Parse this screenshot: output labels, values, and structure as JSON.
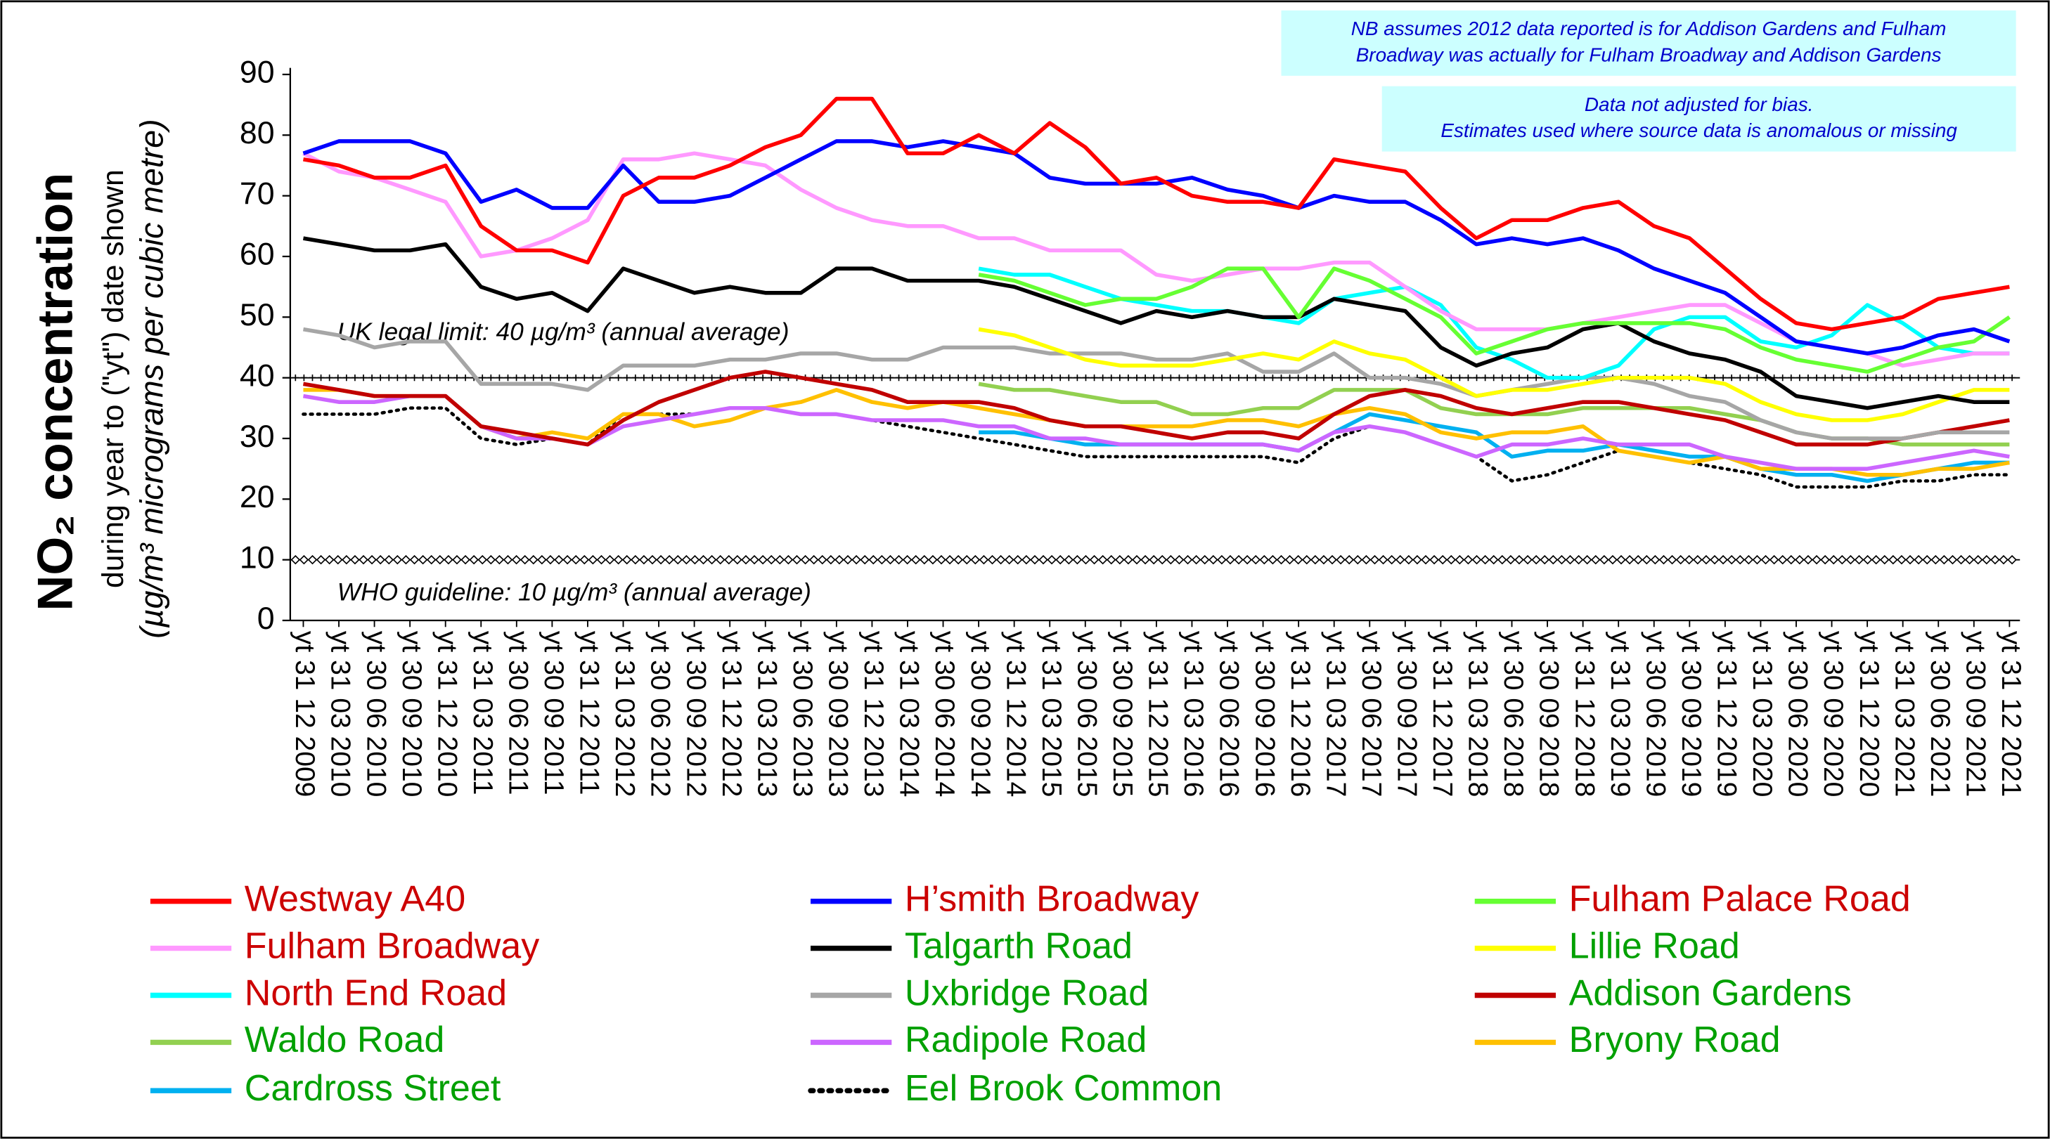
{
  "chart_data": {
    "type": "line",
    "y_title": "NO₂ concentration",
    "y_subtitle": "during year to (\"yt\") date shown",
    "y_units": "(µg/m³ micrograms per cubic metre)",
    "notes": [
      {
        "lines": [
          "NB assumes 2012 data reported is for Addison Gardens and Fulham",
          "Broadway was actually for Fulham Broadway and Addison Gardens"
        ]
      },
      {
        "lines": [
          "Data not adjusted for bias.",
          "Estimates used where source data is anomalous or missing"
        ]
      }
    ],
    "reference_lines": [
      {
        "value": 40,
        "label": "UK legal limit: 40 µg/m³ (annual average)",
        "marker": "plus"
      },
      {
        "value": 10,
        "label": "WHO guideline: 10 µg/m³ (annual average)",
        "marker": "diamond"
      }
    ],
    "ylim": [
      0,
      90
    ],
    "yticks": [
      0,
      10,
      20,
      30,
      40,
      50,
      60,
      70,
      80,
      90
    ],
    "categories": [
      "yt 31 12 2009",
      "yt 31 03 2010",
      "yt 30 06 2010",
      "yt 30 09 2010",
      "yt 31 12 2010",
      "yt 31 03 2011",
      "yt 30 06 2011",
      "yt 30 09 2011",
      "yt 31 12 2011",
      "yt 31 03 2012",
      "yt 30 06 2012",
      "yt 30 09 2012",
      "yt 31 12 2012",
      "yt 31 03 2013",
      "yt 30 06 2013",
      "yt 30 09 2013",
      "yt 31 12 2013",
      "yt 31 03 2014",
      "yt 30 06 2014",
      "yt 30 09 2014",
      "yt 31 12 2014",
      "yt 31 03 2015",
      "yt 30 06 2015",
      "yt 30 09 2015",
      "yt 31 12 2015",
      "yt 31 03 2016",
      "yt 30 06 2016",
      "yt 30 09 2016",
      "yt 31 12 2016",
      "yt 31 03 2017",
      "yt 30 06 2017",
      "yt 30 09 2017",
      "yt 31 12 2017",
      "yt 31 03 2018",
      "yt 30 06 2018",
      "yt 30 09 2018",
      "yt 31 12 2018",
      "yt 31 03 2019",
      "yt 30 06 2019",
      "yt 30 09 2019",
      "yt 31 12 2019",
      "yt 31 03 2020",
      "yt 30 06 2020",
      "yt 30 09 2020",
      "yt 31 12 2020",
      "yt 31 03 2021",
      "yt 30 06 2021",
      "yt 30 09 2021",
      "yt 31 12 2021"
    ],
    "series": [
      {
        "name": "Westway A40",
        "color": "#ff0000",
        "label_color": "#cc0000",
        "style": "solid",
        "values": [
          76,
          75,
          73,
          73,
          75,
          65,
          61,
          61,
          59,
          70,
          73,
          73,
          75,
          78,
          80,
          86,
          86,
          77,
          77,
          80,
          77,
          82,
          78,
          72,
          73,
          70,
          69,
          69,
          68,
          76,
          75,
          74,
          68,
          63,
          66,
          66,
          68,
          69,
          65,
          63,
          58,
          53,
          49,
          48,
          49,
          50,
          53,
          54,
          55
        ]
      },
      {
        "name": "H’smith Broadway",
        "color": "#0000ff",
        "label_color": "#cc0000",
        "style": "solid",
        "values": [
          77,
          79,
          79,
          79,
          77,
          69,
          71,
          68,
          68,
          75,
          69,
          69,
          70,
          73,
          76,
          79,
          79,
          78,
          79,
          78,
          77,
          73,
          72,
          72,
          72,
          73,
          71,
          70,
          68,
          70,
          69,
          69,
          66,
          62,
          63,
          62,
          63,
          61,
          58,
          56,
          54,
          50,
          46,
          45,
          44,
          45,
          47,
          48,
          46
        ]
      },
      {
        "name": "Fulham Palace Road",
        "color": "#66ff33",
        "label_color": "#cc0000",
        "style": "solid",
        "values": [
          null,
          null,
          null,
          null,
          null,
          null,
          null,
          null,
          null,
          null,
          null,
          null,
          null,
          null,
          null,
          null,
          null,
          null,
          null,
          57,
          56,
          54,
          52,
          53,
          53,
          55,
          58,
          58,
          50,
          58,
          56,
          53,
          50,
          44,
          46,
          48,
          49,
          49,
          49,
          49,
          48,
          45,
          43,
          42,
          41,
          43,
          45,
          46,
          50
        ]
      },
      {
        "name": "Fulham Broadway",
        "color": "#ff99ff",
        "label_color": "#cc0000",
        "style": "solid",
        "values": [
          77,
          74,
          73,
          71,
          69,
          60,
          61,
          63,
          66,
          76,
          76,
          77,
          76,
          75,
          71,
          68,
          66,
          65,
          65,
          63,
          63,
          61,
          61,
          61,
          57,
          56,
          57,
          58,
          58,
          59,
          59,
          55,
          51,
          48,
          48,
          48,
          49,
          50,
          51,
          52,
          52,
          49,
          46,
          45,
          44,
          42,
          43,
          44,
          44
        ]
      },
      {
        "name": "Talgarth Road",
        "color": "#000000",
        "label_color": "#00a000",
        "style": "solid",
        "values": [
          63,
          62,
          61,
          61,
          62,
          55,
          53,
          54,
          51,
          58,
          56,
          54,
          55,
          54,
          54,
          58,
          58,
          56,
          56,
          56,
          55,
          53,
          51,
          49,
          51,
          50,
          51,
          50,
          50,
          53,
          52,
          51,
          45,
          42,
          44,
          45,
          48,
          49,
          46,
          44,
          43,
          41,
          37,
          36,
          35,
          36,
          37,
          36,
          36
        ]
      },
      {
        "name": "Lillie Road",
        "color": "#ffff00",
        "label_color": "#00a000",
        "style": "solid",
        "values": [
          null,
          null,
          null,
          null,
          null,
          null,
          null,
          null,
          null,
          null,
          null,
          null,
          null,
          null,
          null,
          null,
          null,
          null,
          null,
          48,
          47,
          45,
          43,
          42,
          42,
          42,
          43,
          44,
          43,
          46,
          44,
          43,
          40,
          37,
          38,
          38,
          39,
          40,
          40,
          40,
          39,
          36,
          34,
          33,
          33,
          34,
          36,
          38,
          38
        ]
      },
      {
        "name": "North End Road",
        "color": "#00ffff",
        "label_color": "#cc0000",
        "style": "solid",
        "values": [
          null,
          null,
          null,
          null,
          null,
          null,
          null,
          null,
          null,
          null,
          null,
          null,
          null,
          null,
          null,
          null,
          null,
          null,
          null,
          58,
          57,
          57,
          55,
          53,
          52,
          51,
          51,
          50,
          49,
          53,
          54,
          55,
          52,
          45,
          43,
          40,
          40,
          42,
          48,
          50,
          50,
          46,
          45,
          47,
          52,
          49,
          45,
          44,
          44
        ]
      },
      {
        "name": "Uxbridge Road",
        "color": "#a6a6a6",
        "label_color": "#00a000",
        "style": "solid",
        "values": [
          48,
          47,
          45,
          46,
          46,
          39,
          39,
          39,
          38,
          42,
          42,
          42,
          43,
          43,
          44,
          44,
          43,
          43,
          45,
          45,
          45,
          44,
          44,
          44,
          43,
          43,
          44,
          41,
          41,
          44,
          40,
          40,
          39,
          37,
          38,
          39,
          40,
          40,
          39,
          37,
          36,
          33,
          31,
          30,
          30,
          30,
          31,
          31,
          31
        ]
      },
      {
        "name": "Addison Gardens",
        "color": "#c00000",
        "label_color": "#00a000",
        "style": "solid",
        "values": [
          39,
          38,
          37,
          37,
          37,
          32,
          31,
          30,
          29,
          33,
          36,
          38,
          40,
          41,
          40,
          39,
          38,
          36,
          36,
          36,
          35,
          33,
          32,
          32,
          31,
          30,
          31,
          31,
          30,
          34,
          37,
          38,
          37,
          35,
          34,
          35,
          36,
          36,
          35,
          34,
          33,
          31,
          29,
          29,
          29,
          30,
          31,
          32,
          33
        ]
      },
      {
        "name": "Waldo Road",
        "color": "#92d050",
        "label_color": "#00a000",
        "style": "solid",
        "values": [
          null,
          null,
          null,
          null,
          null,
          null,
          null,
          null,
          null,
          null,
          null,
          null,
          null,
          null,
          null,
          null,
          null,
          null,
          null,
          39,
          38,
          38,
          37,
          36,
          36,
          34,
          34,
          35,
          35,
          38,
          38,
          38,
          35,
          34,
          34,
          34,
          35,
          35,
          35,
          35,
          34,
          33,
          31,
          30,
          30,
          29,
          29,
          29,
          29
        ]
      },
      {
        "name": "Radipole Road",
        "color": "#cc66ff",
        "label_color": "#00a000",
        "style": "solid",
        "values": [
          37,
          36,
          36,
          37,
          37,
          32,
          30,
          30,
          29,
          32,
          33,
          34,
          35,
          35,
          34,
          34,
          33,
          33,
          33,
          32,
          32,
          30,
          30,
          29,
          29,
          29,
          29,
          29,
          28,
          31,
          32,
          31,
          29,
          27,
          29,
          29,
          30,
          29,
          29,
          29,
          27,
          26,
          25,
          25,
          25,
          26,
          27,
          28,
          27
        ]
      },
      {
        "name": "Bryony Road",
        "color": "#ffc000",
        "label_color": "#00a000",
        "style": "solid",
        "values": [
          38,
          38,
          37,
          37,
          37,
          32,
          30,
          31,
          30,
          34,
          34,
          32,
          33,
          35,
          36,
          38,
          36,
          35,
          36,
          35,
          34,
          33,
          32,
          32,
          32,
          32,
          33,
          33,
          32,
          34,
          35,
          34,
          31,
          30,
          31,
          31,
          32,
          28,
          27,
          26,
          27,
          25,
          25,
          25,
          24,
          24,
          25,
          25,
          26
        ]
      },
      {
        "name": "Cardross Street",
        "color": "#00b0f0",
        "label_color": "#00a000",
        "style": "solid",
        "values": [
          null,
          null,
          null,
          null,
          null,
          null,
          null,
          null,
          null,
          null,
          null,
          null,
          null,
          null,
          null,
          null,
          null,
          null,
          null,
          31,
          31,
          30,
          29,
          29,
          29,
          29,
          29,
          29,
          28,
          31,
          34,
          33,
          32,
          31,
          27,
          28,
          28,
          29,
          28,
          27,
          27,
          25,
          24,
          24,
          23,
          24,
          25,
          26,
          26
        ]
      },
      {
        "name": "Eel Brook Common",
        "color": "#000000",
        "label_color": "#00a000",
        "style": "dotted",
        "values": [
          34,
          34,
          34,
          35,
          35,
          30,
          29,
          30,
          29,
          34,
          34,
          34,
          35,
          35,
          34,
          34,
          33,
          32,
          31,
          30,
          29,
          28,
          27,
          27,
          27,
          27,
          27,
          27,
          26,
          30,
          32,
          31,
          29,
          27,
          23,
          24,
          26,
          28,
          27,
          26,
          25,
          24,
          22,
          22,
          22,
          23,
          23,
          24,
          24
        ]
      }
    ]
  }
}
